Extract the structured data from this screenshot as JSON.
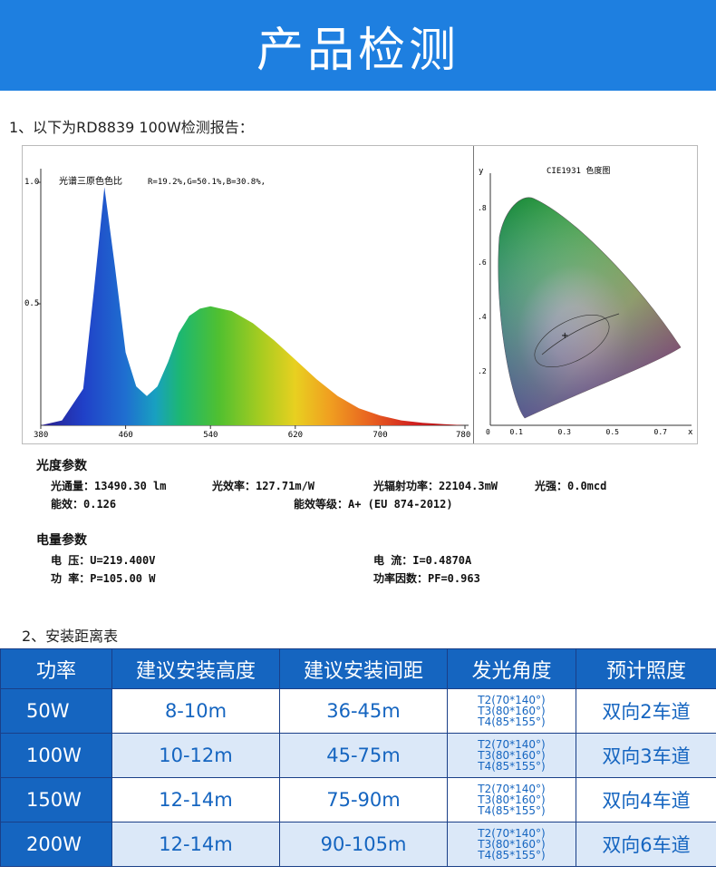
{
  "banner": {
    "title": "产品检测"
  },
  "section1": {
    "title": "1、以下为RD8839 100W检测报告："
  },
  "spectrum_chart": {
    "title": "光谱三原色色比",
    "ratio": "R=19.2%,G=50.1%,B=30.8%,",
    "y_ticks": [
      "1.0",
      "0.5"
    ],
    "x_ticks": [
      "380",
      "460",
      "540",
      "620",
      "700",
      "780"
    ]
  },
  "cie_chart": {
    "title": "CIE1931 色度图",
    "y_label": "y",
    "x_label": "x",
    "y_ticks": [
      ".8",
      ".6",
      ".4",
      ".2"
    ],
    "x_ticks": [
      "0",
      "0.1",
      "0.3",
      "0.5",
      "0.7"
    ]
  },
  "chart_data": [
    {
      "type": "area",
      "title": "光谱三原色色比",
      "x": [
        380,
        400,
        420,
        430,
        440,
        450,
        460,
        470,
        480,
        490,
        500,
        510,
        520,
        530,
        540,
        560,
        580,
        600,
        620,
        640,
        660,
        680,
        700,
        720,
        740,
        760,
        780
      ],
      "values": [
        0.0,
        0.02,
        0.15,
        0.55,
        0.98,
        0.65,
        0.3,
        0.16,
        0.12,
        0.16,
        0.26,
        0.38,
        0.45,
        0.48,
        0.49,
        0.47,
        0.42,
        0.35,
        0.27,
        0.19,
        0.12,
        0.07,
        0.04,
        0.02,
        0.01,
        0.005,
        0.0
      ],
      "xlim": [
        380,
        780
      ],
      "ylim": [
        0,
        1.0
      ]
    },
    {
      "type": "scatter",
      "title": "CIE1931 色度图",
      "xlabel": "x",
      "ylabel": "y",
      "xlim": [
        0,
        0.8
      ],
      "ylim": [
        0,
        0.9
      ]
    }
  ],
  "photometric": {
    "heading": "光度参数",
    "flux": "光通量：13490.30 lm",
    "efficacy": "光效率：127.71m/W",
    "radiant_power": "光辐射功率：22104.3mW",
    "intensity": "光强：0.0mcd",
    "energy_efficiency": "能效：0.126",
    "energy_grade": "能效等级：A+ (EU 874-2012)"
  },
  "electrical": {
    "heading": "电量参数",
    "voltage": "电      压：U=219.400V",
    "current": "电      流：I=0.4870A",
    "power": "功      率：P=105.00 W",
    "power_factor": "功率因数：PF=0.963"
  },
  "section2": {
    "title": "2、安装距离表"
  },
  "table": {
    "headers": [
      "功率",
      "建议安装高度",
      "建议安装间距",
      "发光角度",
      "预计照度"
    ],
    "rows": [
      {
        "power": "50W",
        "height": "8-10m",
        "spacing": "36-45m",
        "angles": [
          "T2(70*140°)",
          "T3(80*160°)",
          "T4(85*155°)"
        ],
        "lanes": "双向2车道"
      },
      {
        "power": "100W",
        "height": "10-12m",
        "spacing": "45-75m",
        "angles": [
          "T2(70*140°)",
          "T3(80*160°)",
          "T4(85*155°)"
        ],
        "lanes": "双向3车道"
      },
      {
        "power": "150W",
        "height": "12-14m",
        "spacing": "75-90m",
        "angles": [
          "T2(70*140°)",
          "T3(80*160°)",
          "T4(85*155°)"
        ],
        "lanes": "双向4车道"
      },
      {
        "power": "200W",
        "height": "12-14m",
        "spacing": "90-105m",
        "angles": [
          "T2(70*140°)",
          "T3(80*160°)",
          "T4(85*155°)"
        ],
        "lanes": "双向6车道"
      }
    ]
  }
}
